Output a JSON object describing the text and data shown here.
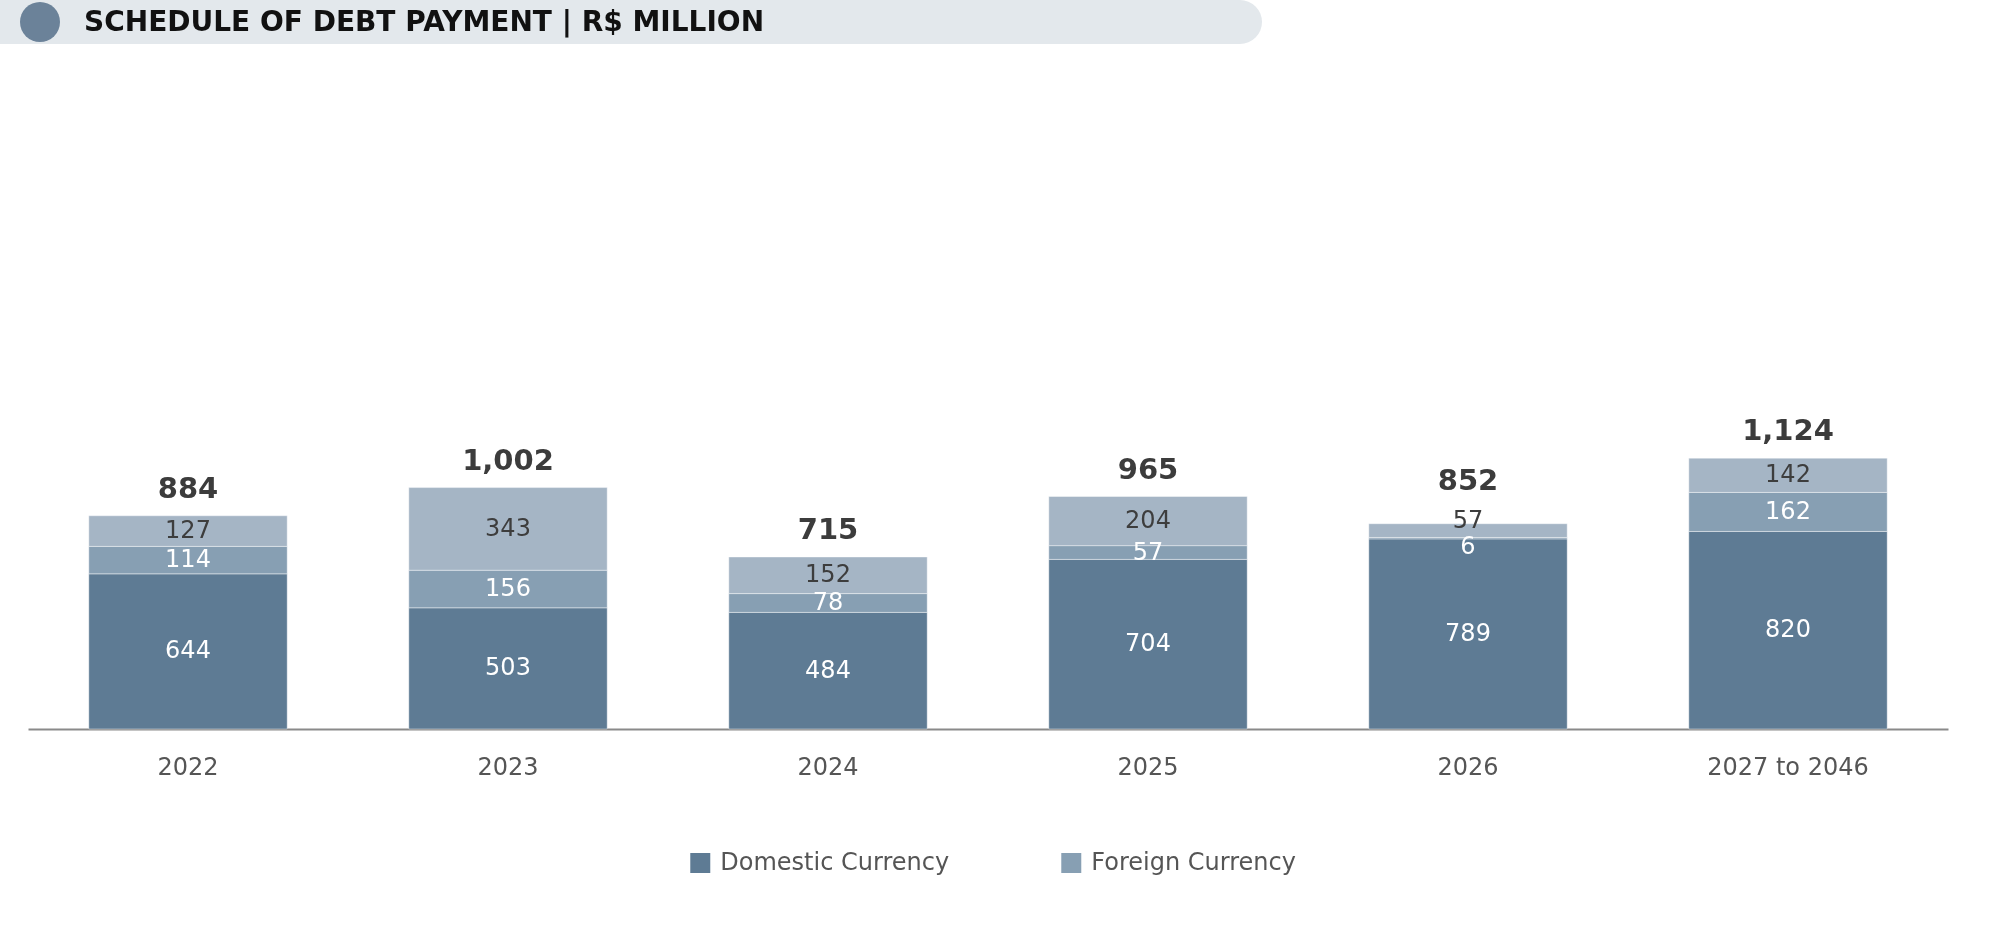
{
  "chart_data": {
    "type": "bar",
    "title": "SCHEDULE OF DEBT PAYMENT | R$ MILLION",
    "categories": [
      "2022",
      "2023",
      "2024",
      "2025",
      "2026",
      "2027 to 2046"
    ],
    "stacked": true,
    "series": [
      {
        "name": "Domestic Currency",
        "color": "#5e7b94",
        "values": [
          644,
          503,
          484,
          704,
          789,
          820
        ]
      },
      {
        "name": "Foreign Currency",
        "color": "#879fb3",
        "values": [
          114,
          156,
          78,
          57,
          6,
          162
        ]
      },
      {
        "color": "#a5b5c5",
        "values": [
          127,
          343,
          152,
          204,
          57,
          142
        ]
      }
    ],
    "data_labels": true,
    "totals": [
      "884",
      "1,002",
      "715",
      "965",
      "852",
      "1,124"
    ],
    "legend": "bottom"
  }
}
